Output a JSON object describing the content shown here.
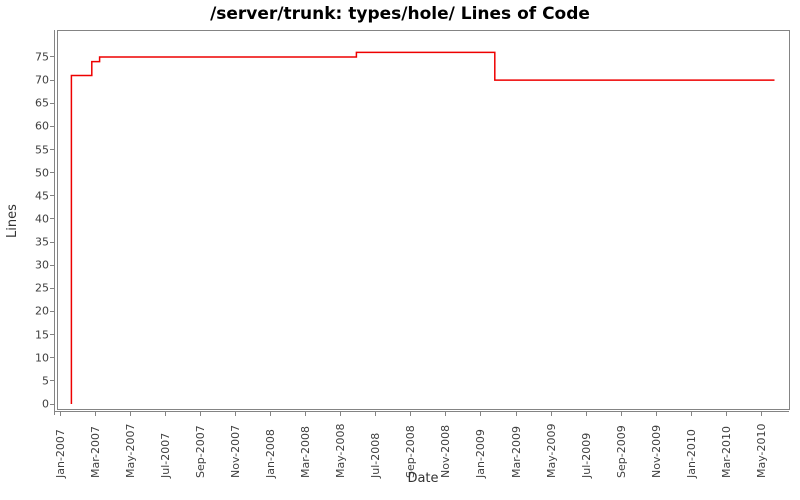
{
  "chart_data": {
    "type": "line",
    "step": "after",
    "title": "/server/trunk: types/hole/ Lines of Code",
    "xlabel": "Date",
    "ylabel": "Lines",
    "grid": false,
    "legend": "none",
    "x_range": [
      "Jan-2007",
      "May-2010"
    ],
    "ylim": [
      0,
      80
    ],
    "x_ticks": [
      "Jan-2007",
      "Mar-2007",
      "May-2007",
      "Jul-2007",
      "Sep-2007",
      "Nov-2007",
      "Jan-2008",
      "Mar-2008",
      "May-2008",
      "Jul-2008",
      "Sep-2008",
      "Nov-2008",
      "Jan-2009",
      "Mar-2009",
      "May-2009",
      "Jul-2009",
      "Sep-2009",
      "Nov-2009",
      "Jan-2010",
      "Mar-2010",
      "May-2010"
    ],
    "y_ticks": [
      0,
      5,
      10,
      15,
      20,
      25,
      30,
      35,
      40,
      45,
      50,
      55,
      60,
      65,
      70,
      75
    ],
    "series": [
      {
        "name": "Lines of Code",
        "color": "#ee0000",
        "points": [
          {
            "date": "2007-01-20",
            "value": 0
          },
          {
            "date": "2007-01-20",
            "value": 71
          },
          {
            "date": "2007-02-25",
            "value": 74
          },
          {
            "date": "2007-03-08",
            "value": 75
          },
          {
            "date": "2008-05-28",
            "value": 76
          },
          {
            "date": "2009-01-25",
            "value": 70
          },
          {
            "date": "2010-05-24",
            "value": 70
          }
        ]
      }
    ]
  },
  "colors": {
    "line": "#ee0000",
    "plot_border": "#848484",
    "tick_label": "#3f3f3f",
    "axis_label": "#333333",
    "title": "#000000",
    "background": "#ffffff"
  }
}
